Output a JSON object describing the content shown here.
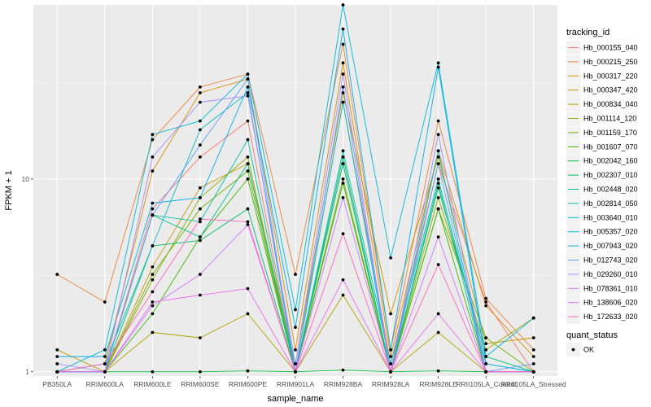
{
  "chart_data": {
    "type": "line",
    "xlabel": "sample_name",
    "ylabel": "FPKM + 1",
    "y_scale": "log",
    "ylim": [
      0.95,
      80
    ],
    "y_ticks": [
      1,
      10
    ],
    "grid": true,
    "legend_placement": "right",
    "categories": [
      "PB350LA",
      "RRIM600LA",
      "RRIM600LE",
      "RRIM600SE",
      "RRIM600PE",
      "RRIM901LA",
      "RRIM928BA",
      "RRIM928LA",
      "RRIM928LE",
      "RRII105LA_Control",
      "RRII105LA_Stressed"
    ],
    "color_legend_title": "tracking_id",
    "shape_legend_title": "quant_status",
    "shape_legend_entries": [
      "OK"
    ],
    "series": [
      {
        "name": "Hb_000155_040",
        "color": "#F8766D",
        "values": [
          1.0,
          1.0,
          7.0,
          13.0,
          20.0,
          1.0,
          25.0,
          1.1,
          12.0,
          2.3,
          1.0
        ]
      },
      {
        "name": "Hb_000215_250",
        "color": "#EC8239",
        "values": [
          3.2,
          2.3,
          16.0,
          30.0,
          35.0,
          3.2,
          50.0,
          1.3,
          20.0,
          2.4,
          1.3
        ]
      },
      {
        "name": "Hb_000317_220",
        "color": "#DB8E00",
        "values": [
          1.0,
          1.1,
          11.0,
          28.0,
          33.0,
          1.3,
          40.0,
          1.2,
          14.0,
          2.2,
          1.2
        ]
      },
      {
        "name": "Hb_000347_420",
        "color": "#C79800",
        "values": [
          1.3,
          1.0,
          3.5,
          9.0,
          12.0,
          1.1,
          28.0,
          2.0,
          13.0,
          1.4,
          1.5
        ]
      },
      {
        "name": "Hb_000834_040",
        "color": "#AFA100",
        "values": [
          1.0,
          1.0,
          1.6,
          1.5,
          2.0,
          1.0,
          2.5,
          1.0,
          1.6,
          1.0,
          1.0
        ]
      },
      {
        "name": "Hb_001114_120",
        "color": "#94A900",
        "values": [
          1.0,
          1.0,
          3.0,
          8.0,
          13.0,
          1.0,
          12.0,
          1.0,
          8.0,
          1.3,
          1.9
        ]
      },
      {
        "name": "Hb_001159_170",
        "color": "#72B000",
        "values": [
          1.0,
          1.0,
          3.2,
          7.0,
          11.0,
          1.0,
          10.0,
          1.0,
          7.0,
          1.5,
          1.0
        ]
      },
      {
        "name": "Hb_001607_070",
        "color": "#3DB700",
        "values": [
          1.0,
          1.0,
          2.0,
          5.0,
          10.0,
          1.0,
          9.5,
          1.0,
          7.0,
          1.0,
          1.0
        ]
      },
      {
        "name": "Hb_002042_160",
        "color": "#00BA38",
        "values": [
          1.0,
          1.0,
          1.0,
          1.0,
          1.01,
          1.0,
          1.02,
          1.0,
          1.01,
          1.0,
          1.0
        ]
      },
      {
        "name": "Hb_002307_010",
        "color": "#00BE6C",
        "values": [
          1.0,
          1.0,
          4.5,
          4.8,
          7.0,
          1.0,
          13.0,
          1.0,
          9.0,
          1.2,
          1.0
        ]
      },
      {
        "name": "Hb_002448_020",
        "color": "#00C08E",
        "values": [
          1.0,
          1.0,
          6.5,
          5.0,
          12.0,
          1.0,
          12.0,
          1.0,
          9.5,
          1.0,
          1.0
        ]
      },
      {
        "name": "Hb_002814_050",
        "color": "#00C0AB",
        "values": [
          1.0,
          1.0,
          6.5,
          6.0,
          16.0,
          1.0,
          14.0,
          1.1,
          10.0,
          1.1,
          1.0
        ]
      },
      {
        "name": "Hb_003640_010",
        "color": "#00BDC4",
        "values": [
          1.0,
          1.1,
          4.5,
          18.0,
          28.0,
          1.0,
          25.0,
          1.0,
          14.0,
          1.0,
          1.0
        ]
      },
      {
        "name": "Hb_005357_020",
        "color": "#00B8DA",
        "values": [
          1.0,
          1.3,
          17.0,
          20.0,
          35.0,
          2.1,
          80.0,
          3.9,
          40.0,
          1.2,
          1.9
        ]
      },
      {
        "name": "Hb_007943_020",
        "color": "#00AEEC",
        "values": [
          1.2,
          1.2,
          7.5,
          8.0,
          30.0,
          1.7,
          60.0,
          1.3,
          38.0,
          1.1,
          1.0
        ]
      },
      {
        "name": "Hb_012743_020",
        "color": "#619CFF",
        "values": [
          1.0,
          1.0,
          6.5,
          15.0,
          33.0,
          1.0,
          30.0,
          1.0,
          12.0,
          1.0,
          1.1
        ]
      },
      {
        "name": "Hb_029260_010",
        "color": "#A58AFF",
        "values": [
          1.1,
          1.0,
          13.0,
          25.0,
          27.0,
          1.1,
          35.0,
          1.0,
          17.0,
          1.0,
          1.0
        ]
      },
      {
        "name": "Hb_078361_010",
        "color": "#D078FF",
        "values": [
          1.0,
          1.0,
          2.2,
          3.2,
          5.8,
          1.0,
          8.0,
          1.0,
          5.0,
          1.0,
          1.0
        ]
      },
      {
        "name": "Hb_138606_020",
        "color": "#EB6AEF",
        "values": [
          1.0,
          1.0,
          2.3,
          2.5,
          2.7,
          1.0,
          3.0,
          1.0,
          2.0,
          1.0,
          1.0
        ]
      },
      {
        "name": "Hb_172633_020",
        "color": "#FF62BC",
        "values": [
          1.0,
          1.1,
          2.6,
          6.2,
          6.0,
          1.0,
          5.2,
          1.0,
          3.6,
          1.0,
          1.0
        ]
      }
    ]
  }
}
